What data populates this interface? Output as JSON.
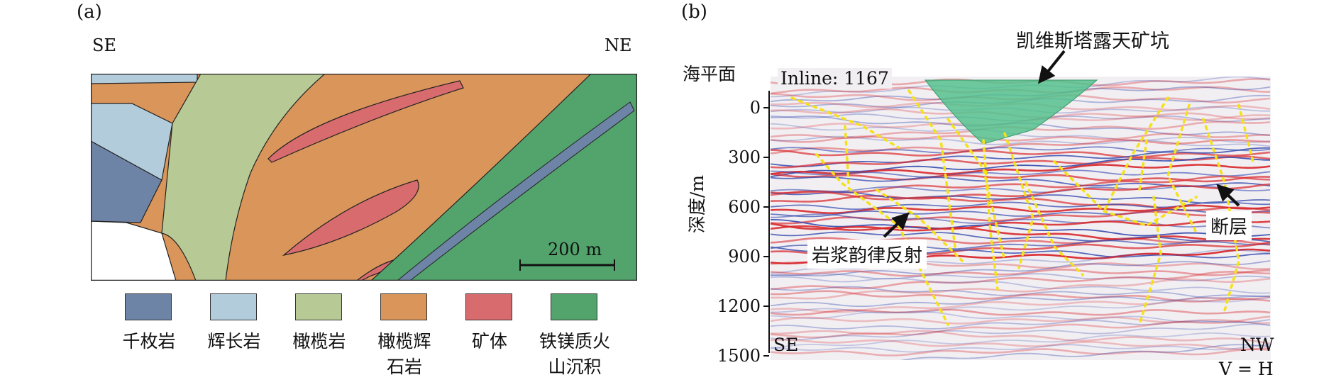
{
  "panel_a": {
    "tag": "(a)",
    "left_dir": "SE",
    "right_dir": "NE",
    "scale_bar": "200 m",
    "legend": [
      {
        "label": "千枚岩",
        "color": "#6e84a6"
      },
      {
        "label": "辉长岩",
        "color": "#b3ccdc"
      },
      {
        "label": "橄榄岩",
        "color": "#b7c994"
      },
      {
        "label": "橄榄辉\n石岩",
        "color": "#d9955a"
      },
      {
        "label": "矿体",
        "color": "#d86b6e"
      },
      {
        "label": "铁镁质火\n山沉积",
        "color": "#52a46c"
      }
    ]
  },
  "panel_b": {
    "tag": "(b)",
    "pit_label": "凯维斯塔露天矿坑",
    "sea_level": "海平面",
    "inline": "Inline: 1167",
    "y_axis_label": "深度/m",
    "y_ticks": [
      "0",
      "300",
      "600",
      "900",
      "1200",
      "1500"
    ],
    "left_dir": "SE",
    "right_dir": "NW",
    "scale_note": "V = H",
    "callout_magma": "岩浆韵律反射",
    "callout_fault": "断层",
    "colors": {
      "reflector_red": "#d8262a",
      "reflector_blue": "#3a4fb0",
      "pit": "#4fc08a",
      "fault": "#f5e11a"
    }
  }
}
